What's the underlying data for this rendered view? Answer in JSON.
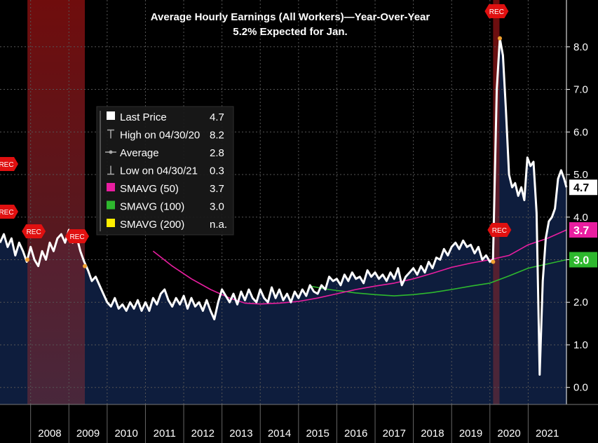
{
  "chart_data": {
    "type": "line",
    "title": "Average Hourly Earnings (All Workers)—Year-Over-Year",
    "subtitle": "5.2% Expected for Jan.",
    "x_tick_labels": [
      "2008",
      "2009",
      "2010",
      "2011",
      "2012",
      "2013",
      "2014",
      "2015",
      "2016",
      "2017",
      "2018",
      "2019",
      "2020",
      "2021"
    ],
    "y_tick_labels": [
      "0.0",
      "1.0",
      "2.0",
      "3.0",
      "4.0",
      "5.0",
      "6.0",
      "7.0",
      "8.0"
    ],
    "xlim": [
      2007.2,
      2022.0
    ],
    "ylim": [
      -0.4,
      9.1
    ],
    "recessions": [
      {
        "start": "2007-12",
        "end": "2009-06",
        "label": "REC"
      },
      {
        "start": "2020-02",
        "end": "2020-04",
        "label": "REC"
      }
    ],
    "series": [
      {
        "name": "Last Price",
        "color": "#ffffff",
        "points": [
          [
            2007.2,
            3.4
          ],
          [
            2007.3,
            3.6
          ],
          [
            2007.4,
            3.3
          ],
          [
            2007.5,
            3.5
          ],
          [
            2007.6,
            3.1
          ],
          [
            2007.7,
            3.4
          ],
          [
            2007.8,
            3.2
          ],
          [
            2007.9,
            2.95
          ],
          [
            2008.0,
            3.3
          ],
          [
            2008.1,
            3.0
          ],
          [
            2008.2,
            2.85
          ],
          [
            2008.3,
            3.2
          ],
          [
            2008.4,
            3.0
          ],
          [
            2008.5,
            3.4
          ],
          [
            2008.6,
            3.2
          ],
          [
            2008.7,
            3.5
          ],
          [
            2008.8,
            3.6
          ],
          [
            2008.9,
            3.4
          ],
          [
            2009.0,
            3.7
          ],
          [
            2009.1,
            3.4
          ],
          [
            2009.2,
            3.55
          ],
          [
            2009.3,
            3.2
          ],
          [
            2009.4,
            2.95
          ],
          [
            2009.5,
            2.75
          ],
          [
            2009.6,
            2.5
          ],
          [
            2009.7,
            2.6
          ],
          [
            2009.8,
            2.4
          ],
          [
            2009.9,
            2.2
          ],
          [
            2010.0,
            2.0
          ],
          [
            2010.1,
            1.9
          ],
          [
            2010.2,
            2.1
          ],
          [
            2010.3,
            1.85
          ],
          [
            2010.4,
            1.95
          ],
          [
            2010.5,
            1.8
          ],
          [
            2010.6,
            2.0
          ],
          [
            2010.7,
            1.85
          ],
          [
            2010.8,
            2.05
          ],
          [
            2010.9,
            1.8
          ],
          [
            2011.0,
            2.0
          ],
          [
            2011.1,
            1.8
          ],
          [
            2011.2,
            2.1
          ],
          [
            2011.3,
            1.95
          ],
          [
            2011.4,
            2.2
          ],
          [
            2011.5,
            2.3
          ],
          [
            2011.6,
            2.05
          ],
          [
            2011.7,
            1.9
          ],
          [
            2011.8,
            2.1
          ],
          [
            2011.9,
            1.95
          ],
          [
            2012.0,
            2.15
          ],
          [
            2012.1,
            1.85
          ],
          [
            2012.2,
            2.1
          ],
          [
            2012.3,
            1.9
          ],
          [
            2012.4,
            2.0
          ],
          [
            2012.5,
            1.8
          ],
          [
            2012.6,
            2.05
          ],
          [
            2012.7,
            1.8
          ],
          [
            2012.8,
            1.6
          ],
          [
            2012.9,
            2.0
          ],
          [
            2013.0,
            2.3
          ],
          [
            2013.1,
            2.15
          ],
          [
            2013.2,
            2.0
          ],
          [
            2013.3,
            2.2
          ],
          [
            2013.4,
            1.95
          ],
          [
            2013.5,
            2.25
          ],
          [
            2013.6,
            2.05
          ],
          [
            2013.7,
            2.3
          ],
          [
            2013.8,
            2.1
          ],
          [
            2013.9,
            2.0
          ],
          [
            2014.0,
            2.3
          ],
          [
            2014.1,
            2.1
          ],
          [
            2014.2,
            2.0
          ],
          [
            2014.3,
            2.35
          ],
          [
            2014.4,
            2.1
          ],
          [
            2014.5,
            2.3
          ],
          [
            2014.6,
            2.05
          ],
          [
            2014.7,
            2.2
          ],
          [
            2014.8,
            2.0
          ],
          [
            2014.9,
            2.25
          ],
          [
            2015.0,
            2.1
          ],
          [
            2015.1,
            2.3
          ],
          [
            2015.2,
            2.15
          ],
          [
            2015.3,
            2.4
          ],
          [
            2015.4,
            2.25
          ],
          [
            2015.5,
            2.2
          ],
          [
            2015.6,
            2.4
          ],
          [
            2015.7,
            2.3
          ],
          [
            2015.8,
            2.6
          ],
          [
            2015.9,
            2.5
          ],
          [
            2016.0,
            2.55
          ],
          [
            2016.1,
            2.4
          ],
          [
            2016.2,
            2.65
          ],
          [
            2016.3,
            2.5
          ],
          [
            2016.4,
            2.7
          ],
          [
            2016.5,
            2.55
          ],
          [
            2016.6,
            2.6
          ],
          [
            2016.7,
            2.45
          ],
          [
            2016.8,
            2.75
          ],
          [
            2016.9,
            2.6
          ],
          [
            2017.0,
            2.7
          ],
          [
            2017.1,
            2.55
          ],
          [
            2017.2,
            2.65
          ],
          [
            2017.3,
            2.5
          ],
          [
            2017.4,
            2.7
          ],
          [
            2017.5,
            2.55
          ],
          [
            2017.6,
            2.8
          ],
          [
            2017.7,
            2.4
          ],
          [
            2017.8,
            2.6
          ],
          [
            2017.9,
            2.7
          ],
          [
            2018.0,
            2.8
          ],
          [
            2018.1,
            2.65
          ],
          [
            2018.2,
            2.85
          ],
          [
            2018.3,
            2.7
          ],
          [
            2018.4,
            2.95
          ],
          [
            2018.5,
            2.8
          ],
          [
            2018.6,
            3.05
          ],
          [
            2018.7,
            3.0
          ],
          [
            2018.8,
            3.25
          ],
          [
            2018.9,
            3.1
          ],
          [
            2019.0,
            3.3
          ],
          [
            2019.1,
            3.4
          ],
          [
            2019.2,
            3.25
          ],
          [
            2019.3,
            3.45
          ],
          [
            2019.4,
            3.3
          ],
          [
            2019.5,
            3.35
          ],
          [
            2019.6,
            3.15
          ],
          [
            2019.7,
            3.3
          ],
          [
            2019.8,
            3.0
          ],
          [
            2019.9,
            3.1
          ],
          [
            2020.0,
            2.95
          ],
          [
            2020.08,
            3.0
          ],
          [
            2020.18,
            7.0
          ],
          [
            2020.26,
            8.2
          ],
          [
            2020.34,
            7.8
          ],
          [
            2020.42,
            6.5
          ],
          [
            2020.5,
            5.0
          ],
          [
            2020.58,
            4.7
          ],
          [
            2020.66,
            4.8
          ],
          [
            2020.74,
            4.5
          ],
          [
            2020.82,
            4.7
          ],
          [
            2020.9,
            4.4
          ],
          [
            2020.98,
            5.4
          ],
          [
            2021.06,
            5.2
          ],
          [
            2021.14,
            5.3
          ],
          [
            2021.22,
            4.1
          ],
          [
            2021.3,
            0.3
          ],
          [
            2021.38,
            2.5
          ],
          [
            2021.46,
            3.5
          ],
          [
            2021.54,
            3.9
          ],
          [
            2021.62,
            4.0
          ],
          [
            2021.7,
            4.2
          ],
          [
            2021.78,
            4.9
          ],
          [
            2021.86,
            5.1
          ],
          [
            2021.94,
            4.9
          ],
          [
            2022.0,
            4.7
          ]
        ]
      },
      {
        "name": "SMAVG (50)",
        "color": "#e91ea0",
        "points": [
          [
            2011.2,
            3.2
          ],
          [
            2011.7,
            2.85
          ],
          [
            2012.2,
            2.55
          ],
          [
            2012.7,
            2.3
          ],
          [
            2013.2,
            2.1
          ],
          [
            2013.6,
            1.98
          ],
          [
            2014.0,
            1.96
          ],
          [
            2014.5,
            1.98
          ],
          [
            2015.0,
            2.02
          ],
          [
            2015.5,
            2.1
          ],
          [
            2016.0,
            2.2
          ],
          [
            2016.5,
            2.3
          ],
          [
            2017.0,
            2.38
          ],
          [
            2017.5,
            2.45
          ],
          [
            2018.0,
            2.55
          ],
          [
            2018.5,
            2.68
          ],
          [
            2019.0,
            2.82
          ],
          [
            2019.5,
            2.92
          ],
          [
            2020.0,
            3.0
          ],
          [
            2020.5,
            3.1
          ],
          [
            2021.0,
            3.35
          ],
          [
            2021.5,
            3.5
          ],
          [
            2022.0,
            3.7
          ]
        ]
      },
      {
        "name": "SMAVG (100)",
        "color": "#2eb82e",
        "points": [
          [
            2015.3,
            2.38
          ],
          [
            2015.8,
            2.3
          ],
          [
            2016.5,
            2.22
          ],
          [
            2017.0,
            2.18
          ],
          [
            2017.5,
            2.15
          ],
          [
            2018.0,
            2.18
          ],
          [
            2018.5,
            2.23
          ],
          [
            2019.0,
            2.3
          ],
          [
            2019.5,
            2.38
          ],
          [
            2020.0,
            2.45
          ],
          [
            2020.5,
            2.62
          ],
          [
            2021.0,
            2.8
          ],
          [
            2021.5,
            2.9
          ],
          [
            2022.0,
            3.0
          ]
        ]
      }
    ],
    "last_labels": [
      {
        "text": "4.7",
        "value": 4.7,
        "bg": "#ffffff",
        "fg": "#000000"
      },
      {
        "text": "3.7",
        "value": 3.7,
        "bg": "#e91ea0",
        "fg": "#ffffff"
      },
      {
        "text": "3.0",
        "value": 3.0,
        "bg": "#2eb82e",
        "fg": "#ffffff"
      }
    ],
    "legend": {
      "placement": "top-left",
      "rows": [
        {
          "swatch": "#ffffff",
          "marker": "box",
          "name": "Last Price",
          "value": "4.7"
        },
        {
          "swatch": "#aaaaaa",
          "marker": "high",
          "name": "High on 04/30/20",
          "value": "8.2"
        },
        {
          "swatch": "#aaaaaa",
          "marker": "avg",
          "name": "Average",
          "value": "2.8"
        },
        {
          "swatch": "#aaaaaa",
          "marker": "low",
          "name": "Low on 04/30/21",
          "value": "0.3"
        },
        {
          "swatch": "#e91ea0",
          "marker": "box",
          "name": "SMAVG (50)",
          "value": "3.7"
        },
        {
          "swatch": "#2eb82e",
          "marker": "box",
          "name": "SMAVG (100)",
          "value": "3.0"
        },
        {
          "swatch": "#ffee00",
          "marker": "box",
          "name": "SMAVG (200)",
          "value": "n.a."
        }
      ]
    },
    "colors": {
      "background": "#000000",
      "area_fill": "#0e1d3d",
      "recession_fill": "#7a1515",
      "grid": "#555555",
      "axis_text": "#ffffff",
      "rec_flag": "#e01010"
    }
  }
}
